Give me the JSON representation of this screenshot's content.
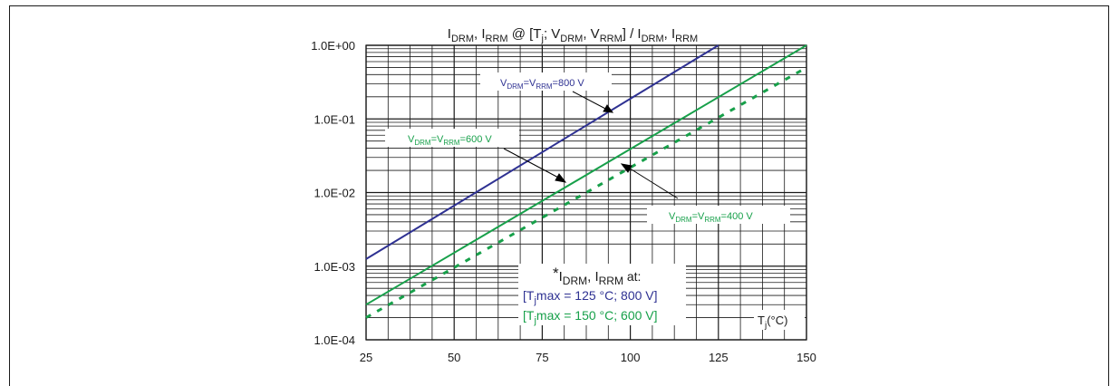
{
  "chart_data": {
    "type": "line",
    "title": "I_DRM, I_RRM @ [T_j; V_DRM, V_RRM] / I_DRM, I_RRM",
    "title_parts": {
      "i1": "I",
      "s1": "DRM",
      "sep1": ", ",
      "i2": "I",
      "s2": "RRM",
      "mid1": " @ [T",
      "j": "j",
      "mid2": "; V",
      "s3": "DRM",
      "sep2": ", V",
      "s4": "RRM",
      "mid3": "] / I",
      "s5": "DRM",
      "sep3": ", I",
      "s6": "RRM"
    },
    "xlabel": "T_j(°C)",
    "xlabel_parts": {
      "t": "T",
      "j": "j",
      "unit": "(°C)"
    },
    "xlim": [
      25,
      150
    ],
    "ylim": [
      0.0001,
      1
    ],
    "yscale": "log",
    "grid": true,
    "x_ticks": [
      "25",
      "50",
      "75",
      "100",
      "125",
      "150"
    ],
    "y_ticks": [
      "1.0E-04",
      "1.0E-03",
      "1.0E-02",
      "1.0E-01",
      "1.0E+00"
    ],
    "series": [
      {
        "label_parts": {
          "v1": "V",
          "s1": "DRM",
          "eq": "=V",
          "s2": "RRM",
          "val": "=800 V"
        },
        "color": "#2e3192",
        "style": "solid",
        "x": [
          25,
          125
        ],
        "y": [
          0.00125,
          1.0
        ]
      },
      {
        "label_parts": {
          "v1": "V",
          "s1": "DRM",
          "eq": "=V",
          "s2": "RRM",
          "val": "=600 V"
        },
        "color": "#17a04a",
        "style": "solid",
        "x": [
          25,
          150
        ],
        "y": [
          0.0003,
          1.0
        ]
      },
      {
        "label_parts": {
          "v1": "V",
          "s1": "DRM",
          "eq": "=V",
          "s2": "RRM",
          "val": "=400 V"
        },
        "color": "#17a04a",
        "style": "dashed",
        "x": [
          25,
          150
        ],
        "y": [
          0.0002,
          0.5
        ]
      }
    ],
    "note": {
      "star": "*",
      "line1": {
        "i1": "I",
        "s1": "DRM",
        "sep": ", I",
        "s2": "RRM",
        "tail": " at:"
      },
      "line2": {
        "a": "[T",
        "j": "j",
        "b": "max = 125 °C; 800 V]",
        "color": "#2e3192"
      },
      "line3": {
        "a": "[T",
        "j": "j",
        "b": "max = 150 °C; 600 V]",
        "color": "#17a04a"
      }
    }
  }
}
